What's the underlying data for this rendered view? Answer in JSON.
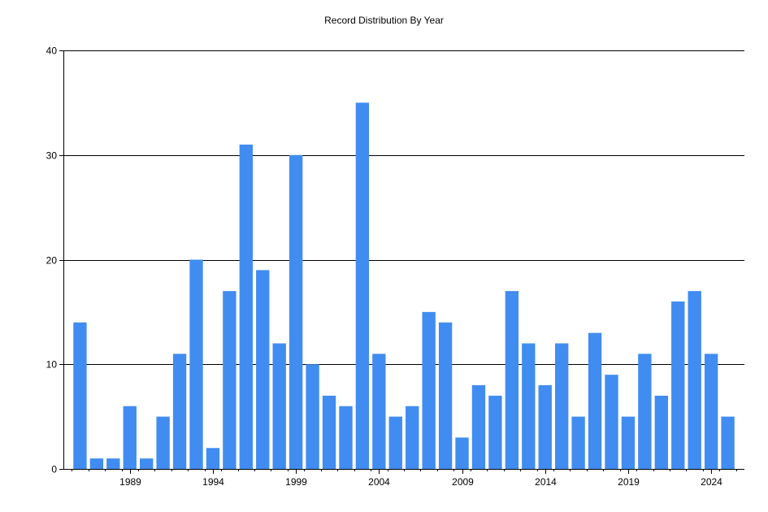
{
  "chart_data": {
    "type": "bar",
    "title": "Record Distribution By Year",
    "xlabel": "",
    "ylabel": "",
    "categories": [
      1986,
      1987,
      1988,
      1989,
      1990,
      1991,
      1992,
      1993,
      1994,
      1995,
      1996,
      1997,
      1998,
      1999,
      2000,
      2001,
      2002,
      2003,
      2004,
      2005,
      2006,
      2007,
      2008,
      2009,
      2010,
      2011,
      2012,
      2013,
      2014,
      2015,
      2016,
      2017,
      2018,
      2019,
      2020,
      2021,
      2022,
      2023,
      2024,
      2025
    ],
    "values": [
      14,
      1,
      1,
      6,
      1,
      5,
      11,
      20,
      2,
      17,
      31,
      19,
      12,
      30,
      10,
      7,
      6,
      35,
      11,
      5,
      6,
      15,
      14,
      3,
      8,
      7,
      17,
      12,
      8,
      12,
      5,
      13,
      9,
      5,
      11,
      7,
      16,
      17,
      11,
      5
    ],
    "x_tick_labels": [
      "1989",
      "1994",
      "1999",
      "2004",
      "2009",
      "2014",
      "2019",
      "2024"
    ],
    "y_ticks": [
      0,
      10,
      20,
      30,
      40
    ],
    "ylim": [
      0,
      40
    ],
    "grid": "horizontal",
    "legend": "none",
    "bar_color": "#418CF0"
  }
}
